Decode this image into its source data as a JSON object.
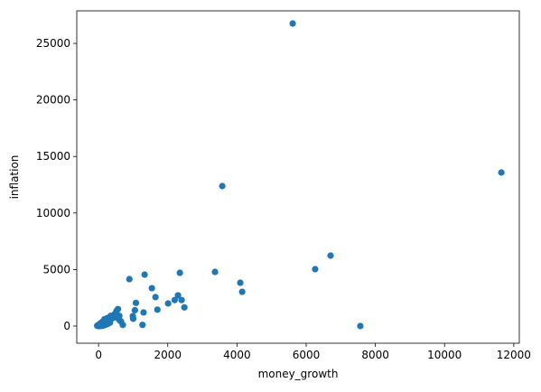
{
  "chart_data": {
    "type": "scatter",
    "xlabel": "money_growth",
    "ylabel": "inflation",
    "color": "#1f77b4",
    "x": [
      5610,
      11640,
      3575,
      6705,
      6260,
      7565,
      4095,
      4150,
      3365,
      2350,
      1330,
      890,
      1540,
      1645,
      2295,
      2400,
      2200,
      2010,
      2480,
      1700,
      1080,
      1050,
      990,
      1000,
      1300,
      1270,
      700,
      520,
      560,
      480,
      600,
      450,
      400,
      350,
      300,
      250,
      200,
      180,
      150,
      120,
      100,
      80,
      60,
      40,
      20,
      0,
      -20,
      -40,
      30,
      70,
      110,
      160,
      210,
      260,
      320,
      380,
      430,
      500,
      550,
      610,
      270,
      190,
      140,
      90,
      50,
      10,
      650,
      330,
      230,
      170
    ],
    "values": [
      26760,
      13580,
      12380,
      6230,
      5030,
      0,
      3830,
      3030,
      4790,
      4710,
      4550,
      4150,
      3350,
      2560,
      2720,
      2300,
      2300,
      2000,
      1650,
      1450,
      2050,
      1400,
      880,
      650,
      1200,
      100,
      100,
      1350,
      1500,
      1100,
      900,
      1000,
      800,
      900,
      600,
      700,
      500,
      300,
      400,
      200,
      350,
      100,
      250,
      50,
      150,
      0,
      80,
      20,
      30,
      180,
      60,
      120,
      250,
      400,
      550,
      650,
      750,
      850,
      700,
      500,
      200,
      100,
      50,
      20,
      10,
      5,
      400,
      300,
      150,
      600
    ],
    "xlim": [
      -630,
      12160
    ],
    "ylim": [
      -1520,
      27880
    ],
    "xticks": [
      0,
      2000,
      4000,
      6000,
      8000,
      10000,
      12000
    ],
    "yticks": [
      0,
      5000,
      10000,
      15000,
      20000,
      25000
    ]
  }
}
